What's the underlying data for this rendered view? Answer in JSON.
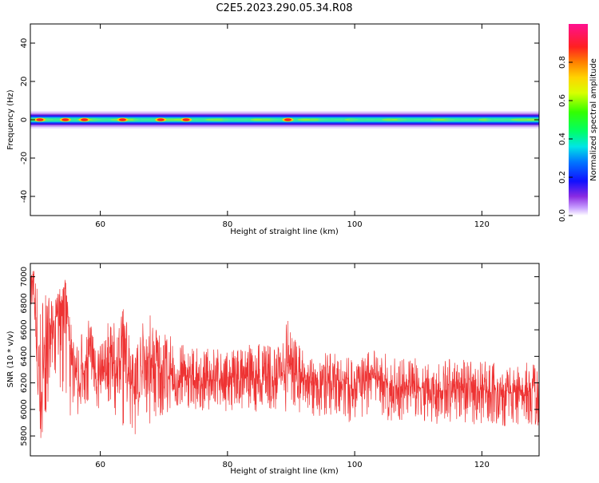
{
  "title": "C2E5.2023.290.05.34.R08",
  "chart_data": [
    {
      "type": "heatmap",
      "xlabel": "Height of straight line (km)",
      "ylabel": "Frequency (Hz)",
      "xlim": [
        49,
        129
      ],
      "ylim": [
        -50,
        50
      ],
      "xticks": [
        60,
        80,
        100,
        120
      ],
      "yticks": [
        40,
        20,
        0,
        -20,
        -40
      ],
      "colorbar": {
        "label": "Normalized spectral amplitude",
        "range": [
          0,
          1
        ],
        "ticks": [
          0.0,
          0.2,
          0.4,
          0.6,
          0.8
        ],
        "tick_labels": [
          "0.0",
          "0.2",
          "0.4",
          "0.6",
          "0.8"
        ]
      },
      "band": {
        "center_hz": 0,
        "notes": "energy concentrated within about ±4 Hz of 0 Hz across all heights",
        "hotspots_km": [
          50.5,
          54.5,
          57.5,
          63.5,
          69.5,
          73.5,
          89.5
        ]
      }
    },
    {
      "type": "line",
      "xlabel": "Height of straight line (km)",
      "ylabel": "SNR (10 * v/v)",
      "xlim": [
        49,
        129
      ],
      "ylim": [
        5650,
        7100
      ],
      "xticks": [
        60,
        80,
        100,
        120
      ],
      "yticks": [
        7000,
        6800,
        6600,
        6400,
        6200,
        6000,
        5800
      ],
      "series": [
        {
          "color": "#ee3333",
          "x": [
            49.5,
            50.5,
            51.5,
            52.5,
            53.5,
            54.5,
            55.5,
            56.5,
            57.5,
            58.5,
            59.5,
            60.5,
            61.5,
            62.5,
            63.5,
            64.5,
            65.5,
            66.5,
            67.5,
            68.5,
            69.5,
            70.5,
            72,
            74,
            76,
            78,
            80,
            82,
            84,
            86,
            88,
            89.5,
            91,
            93,
            95,
            97,
            99,
            101,
            103,
            105,
            107,
            109,
            111,
            113,
            115,
            117,
            119,
            121,
            123,
            125,
            127,
            128.5
          ],
          "y": [
            6950,
            5850,
            6650,
            6550,
            6800,
            6850,
            6350,
            6150,
            6300,
            6400,
            6250,
            6200,
            6450,
            6250,
            6500,
            6300,
            6150,
            6250,
            6400,
            6300,
            6300,
            6250,
            6220,
            6230,
            6210,
            6240,
            6200,
            6240,
            6230,
            6250,
            6230,
            6350,
            6230,
            6220,
            6200,
            6220,
            6190,
            6200,
            6230,
            6200,
            6150,
            6180,
            6160,
            6140,
            6150,
            6160,
            6140,
            6150,
            6140,
            6130,
            6150,
            6120
          ],
          "min_envelope": [
            6700,
            5680,
            5950,
            6050,
            6100,
            6000,
            5850,
            5950,
            6000,
            6000,
            5950,
            5950,
            5950,
            5950,
            5850,
            5900,
            5760,
            5900,
            5850,
            5900,
            5950,
            5950,
            6000,
            6000,
            5980,
            6000,
            5970,
            6000,
            5950,
            5980,
            5950,
            5900,
            5980,
            5950,
            5950,
            5960,
            5900,
            5920,
            5950,
            5920,
            5900,
            5920,
            5900,
            5880,
            5900,
            5900,
            5880,
            5900,
            5850,
            5880,
            5900,
            5870
          ],
          "max_envelope": [
            7080,
            6900,
            6900,
            6800,
            6900,
            6980,
            6650,
            6500,
            6650,
            6700,
            6550,
            6500,
            6750,
            6600,
            6800,
            6650,
            6550,
            6650,
            6750,
            6700,
            6650,
            6600,
            6500,
            6480,
            6450,
            6480,
            6430,
            6480,
            6500,
            6520,
            6480,
            6700,
            6500,
            6450,
            6420,
            6450,
            6400,
            6420,
            6450,
            6420,
            6380,
            6400,
            6380,
            6360,
            6380,
            6380,
            6350,
            6380,
            6330,
            6340,
            6360,
            6330
          ]
        }
      ]
    }
  ]
}
